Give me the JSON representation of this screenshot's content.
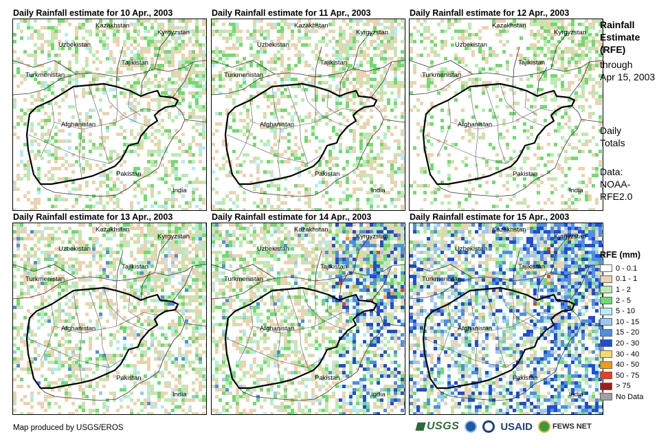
{
  "panels": [
    {
      "title": "Daily Rainfall estimate for 10 Apr., 2003",
      "intensity": 1
    },
    {
      "title": "Daily Rainfall estimate for 11 Apr., 2003",
      "intensity": 1
    },
    {
      "title": "Daily Rainfall estimate for 12 Apr., 2003",
      "intensity": 0
    },
    {
      "title": "Daily Rainfall estimate for 13 Apr., 2003",
      "intensity": 2
    },
    {
      "title": "Daily Rainfall estimate for 14 Apr., 2003",
      "intensity": 3
    },
    {
      "title": "Daily Rainfall estimate for 15 Apr., 2003",
      "intensity": 4
    }
  ],
  "map_labels": {
    "kazakhstan": "Kazakhstan",
    "kyrgyzstan": "Kyrgyzstan",
    "uzbekistan": "Uzbekistan",
    "tajikistan": "Tajikistan",
    "turkmenistan": "Turkmenistan",
    "afghanistan": "Afghanistan",
    "pakistan": "Pakistan",
    "india": "India"
  },
  "sidebar": {
    "title_lines": [
      "Rainfall",
      "Estimate",
      "(RFE)"
    ],
    "through_lines": [
      "through",
      "Apr 15, 2003"
    ],
    "totals_lines": [
      "Daily",
      "Totals"
    ],
    "data_lines": [
      "Data:",
      "NOAA-",
      "RFE2.0"
    ]
  },
  "legend": {
    "title": "RFE (mm)",
    "items": [
      {
        "label": "0 - 0.1",
        "color": "#ffffff"
      },
      {
        "label": "0.1 - 1",
        "color": "#e8d4b0"
      },
      {
        "label": "1 - 2",
        "color": "#b8ecb0"
      },
      {
        "label": "2 - 5",
        "color": "#6edc6e"
      },
      {
        "label": "5 - 10",
        "color": "#b4ecf4"
      },
      {
        "label": "10 - 15",
        "color": "#9cc8f4"
      },
      {
        "label": "15 - 20",
        "color": "#4e8ee6"
      },
      {
        "label": "20 - 30",
        "color": "#1e4ed8"
      },
      {
        "label": "30 - 40",
        "color": "#f4dc64"
      },
      {
        "label": "40 - 50",
        "color": "#f49a14"
      },
      {
        "label": "50 - 75",
        "color": "#e8401c"
      },
      {
        "label": "> 75",
        "color": "#a81a1a"
      },
      {
        "label": "No Data",
        "color": "#a0a0a0"
      }
    ]
  },
  "footer": {
    "credit": "Map produced by USGS/EROS",
    "logos": [
      "USGS",
      "USAID",
      "FEWS NET"
    ]
  }
}
